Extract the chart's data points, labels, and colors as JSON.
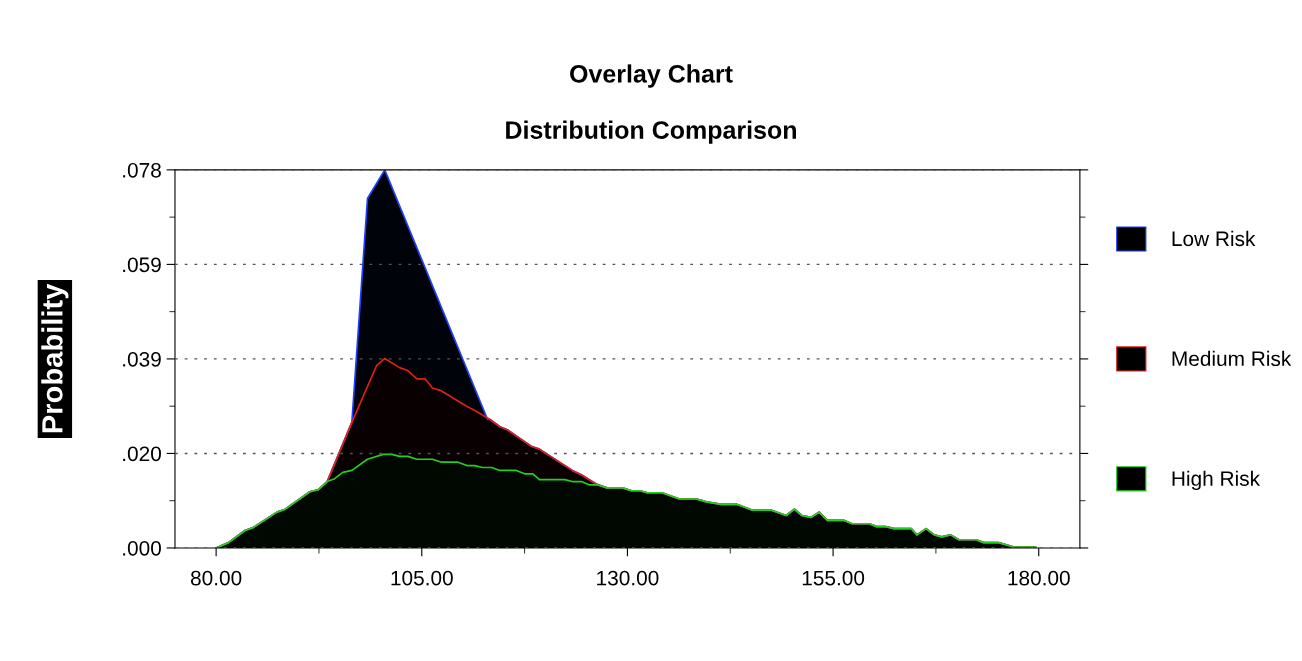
{
  "chart_data": {
    "type": "area",
    "title": "Overlay Chart",
    "subtitle": "Distribution Comparison",
    "ylabel": "Probability",
    "xlim": [
      75,
      185
    ],
    "xticks": [
      {
        "value": 80,
        "label": "80.00"
      },
      {
        "value": 105,
        "label": "105.00"
      },
      {
        "value": 130,
        "label": "130.00"
      },
      {
        "value": 155,
        "label": "155.00"
      },
      {
        "value": 180,
        "label": "180.00"
      }
    ],
    "ylim": [
      0,
      0.078
    ],
    "yticks": [
      {
        "value": 0,
        "label": ".000"
      },
      {
        "value": 0.0195,
        "label": ".020"
      },
      {
        "value": 0.039,
        "label": ".039"
      },
      {
        "value": 0.0585,
        "label": ".059"
      },
      {
        "value": 0.078,
        "label": ".078"
      }
    ],
    "grid": "y",
    "legend": "right",
    "series": [
      {
        "name": "Low Risk",
        "color": "#2040ff",
        "x": [
          80,
          81.5,
          83.5,
          84.5,
          87.4,
          88.4,
          91.4,
          92.4,
          93.5,
          96.5,
          98.4,
          100.5,
          113.0,
          113.3,
          114.5,
          115.4,
          118.3,
          119.3,
          123.3,
          124.4,
          126.2,
          127.5,
          129.4,
          130.5,
          131.5,
          132.4,
          134.2,
          136.3,
          138.4,
          139.6,
          141.4,
          143.3,
          145.2,
          147.5,
          149.3,
          150.3,
          151.2,
          152.3,
          153.3,
          154.3,
          156.3,
          157.3,
          159.4,
          160.3,
          161.4,
          162.4,
          164.5,
          165.2,
          166.3,
          167.3,
          168.2,
          169.3,
          170.3,
          172.4,
          173.3,
          175.1,
          177.0,
          179.6
        ],
        "values": [
          0,
          0.0011,
          0.0036,
          0.0042,
          0.0074,
          0.008,
          0.0116,
          0.012,
          0.0137,
          0.0259,
          0.0721,
          0.078,
          0.0265,
          0.0265,
          0.025,
          0.0244,
          0.021,
          0.0204,
          0.016,
          0.0151,
          0.0132,
          0.0124,
          0.0124,
          0.0118,
          0.0118,
          0.0114,
          0.0114,
          0.0101,
          0.0101,
          0.0095,
          0.009,
          0.009,
          0.0078,
          0.0078,
          0.0067,
          0.008,
          0.0067,
          0.0063,
          0.0074,
          0.0057,
          0.0057,
          0.005,
          0.005,
          0.0044,
          0.0044,
          0.004,
          0.004,
          0.0027,
          0.004,
          0.0027,
          0.0023,
          0.0027,
          0.0017,
          0.0017,
          0.0011,
          0.0011,
          0.0002,
          0.0002
        ]
      },
      {
        "name": "Medium Risk",
        "color": "#e02010",
        "x": [
          80,
          81.5,
          83.5,
          84.5,
          87.4,
          88.4,
          91.4,
          92.4,
          93.5,
          96.5,
          99.5,
          100.5,
          102.3,
          103.3,
          104.4,
          105.4,
          106.3,
          107.4,
          110.5,
          111.4,
          113.3,
          114.5,
          115.4,
          118.3,
          119.3,
          123.3,
          124.4,
          126.2,
          127.5,
          129.4,
          130.5,
          131.5,
          132.4,
          134.2,
          136.3,
          138.4,
          139.6,
          141.4,
          143.3,
          145.2,
          147.5,
          149.3,
          150.3,
          151.2,
          152.3,
          153.3,
          154.3,
          156.3,
          157.3,
          159.4,
          160.3,
          161.4,
          162.4,
          164.5,
          165.2,
          166.3,
          167.3,
          168.2,
          169.3,
          170.3,
          172.4,
          173.3,
          175.1,
          177.0,
          179.6
        ],
        "values": [
          0,
          0.0011,
          0.0036,
          0.0042,
          0.0074,
          0.008,
          0.0116,
          0.012,
          0.0137,
          0.0259,
          0.0376,
          0.0391,
          0.0372,
          0.0366,
          0.0349,
          0.0349,
          0.033,
          0.0324,
          0.0292,
          0.0284,
          0.0265,
          0.025,
          0.0244,
          0.021,
          0.0204,
          0.016,
          0.0151,
          0.0132,
          0.0124,
          0.0124,
          0.0118,
          0.0118,
          0.0114,
          0.0114,
          0.0101,
          0.0101,
          0.0095,
          0.009,
          0.009,
          0.0078,
          0.0078,
          0.0067,
          0.008,
          0.0067,
          0.0063,
          0.0074,
          0.0057,
          0.0057,
          0.005,
          0.005,
          0.0044,
          0.0044,
          0.004,
          0.004,
          0.0027,
          0.004,
          0.0027,
          0.0023,
          0.0027,
          0.0017,
          0.0017,
          0.0011,
          0.0011,
          0.0002,
          0.0002
        ]
      },
      {
        "name": "High Risk",
        "color": "#20d020",
        "x": [
          80,
          81.5,
          83.5,
          84.5,
          87.4,
          88.4,
          91.4,
          92.4,
          93.5,
          94.4,
          95.4,
          96.5,
          98.4,
          100.3,
          101.4,
          102.3,
          103.3,
          104.4,
          106.3,
          107.4,
          109.4,
          110.5,
          111.4,
          112.4,
          113.5,
          114.5,
          116.5,
          117.5,
          118.5,
          119.3,
          122.4,
          123.3,
          124.4,
          125.4,
          126.4,
          127.5,
          129.4,
          130.5,
          131.5,
          132.4,
          134.2,
          136.3,
          138.4,
          139.6,
          141.4,
          143.3,
          145.2,
          147.5,
          149.3,
          150.3,
          151.2,
          152.3,
          153.3,
          154.3,
          156.3,
          157.3,
          159.4,
          160.3,
          161.4,
          162.4,
          164.5,
          165.2,
          166.3,
          167.3,
          168.2,
          169.3,
          170.3,
          172.4,
          173.3,
          175.1,
          177.0,
          179.6
        ],
        "values": [
          0,
          0.0011,
          0.0036,
          0.0042,
          0.0074,
          0.008,
          0.0116,
          0.012,
          0.0137,
          0.0143,
          0.0156,
          0.016,
          0.0183,
          0.0193,
          0.0193,
          0.0189,
          0.0189,
          0.0183,
          0.0183,
          0.0177,
          0.0177,
          0.017,
          0.017,
          0.0166,
          0.0166,
          0.016,
          0.016,
          0.0153,
          0.0153,
          0.0141,
          0.0141,
          0.0137,
          0.0137,
          0.013,
          0.013,
          0.0124,
          0.0124,
          0.0118,
          0.0118,
          0.0114,
          0.0114,
          0.0101,
          0.0101,
          0.0095,
          0.009,
          0.009,
          0.0078,
          0.0078,
          0.0067,
          0.008,
          0.0067,
          0.0063,
          0.0074,
          0.0057,
          0.0057,
          0.005,
          0.005,
          0.0044,
          0.0044,
          0.004,
          0.004,
          0.0027,
          0.004,
          0.0027,
          0.0023,
          0.0027,
          0.0017,
          0.0017,
          0.0011,
          0.0011,
          0.0002,
          0.0002
        ]
      }
    ]
  }
}
